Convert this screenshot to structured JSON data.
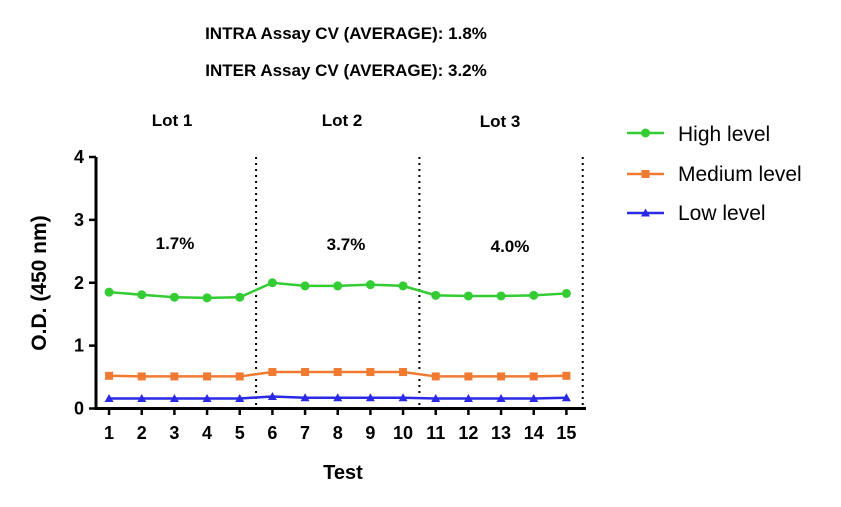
{
  "header": {
    "intra_line": "INTRA Assay CV (AVERAGE): 1.8%",
    "inter_line": "INTER Assay CV (AVERAGE): 3.2%"
  },
  "chart_data": {
    "type": "line",
    "title": "",
    "xlabel": "Test",
    "ylabel": "O.D. (450 nm)",
    "x": [
      1,
      2,
      3,
      4,
      5,
      6,
      7,
      8,
      9,
      10,
      11,
      12,
      13,
      14,
      15
    ],
    "x_tick_labels": [
      "1",
      "2",
      "3",
      "4",
      "5",
      "6",
      "7",
      "8",
      "9",
      "10",
      "11",
      "12",
      "13",
      "14",
      "15"
    ],
    "y_tick_labels": [
      "0",
      "1",
      "2",
      "3",
      "4"
    ],
    "xlim": [
      0.6,
      15.6
    ],
    "ylim": [
      0,
      4
    ],
    "grid": false,
    "legend": "right",
    "series": [
      {
        "name": "High level",
        "color": "#33cc33",
        "marker": "circle",
        "values": [
          1.85,
          1.81,
          1.77,
          1.76,
          1.77,
          2.0,
          1.95,
          1.95,
          1.97,
          1.95,
          1.8,
          1.79,
          1.79,
          1.8,
          1.83
        ]
      },
      {
        "name": "Medium level",
        "color": "#f07a32",
        "marker": "square",
        "values": [
          0.52,
          0.51,
          0.51,
          0.51,
          0.51,
          0.58,
          0.58,
          0.58,
          0.58,
          0.58,
          0.51,
          0.51,
          0.51,
          0.51,
          0.52
        ]
      },
      {
        "name": "Low level",
        "color": "#2a2ae6",
        "marker": "triangle",
        "values": [
          0.16,
          0.16,
          0.16,
          0.16,
          0.16,
          0.19,
          0.17,
          0.17,
          0.17,
          0.17,
          0.16,
          0.16,
          0.16,
          0.16,
          0.17
        ]
      }
    ],
    "separators_x": [
      5.5,
      10.5,
      15.5
    ],
    "lots": [
      {
        "label": "Lot 1",
        "cv": "1.7%"
      },
      {
        "label": "Lot 2",
        "cv": "3.7%"
      },
      {
        "label": "Lot 3",
        "cv": "4.0%"
      }
    ]
  }
}
